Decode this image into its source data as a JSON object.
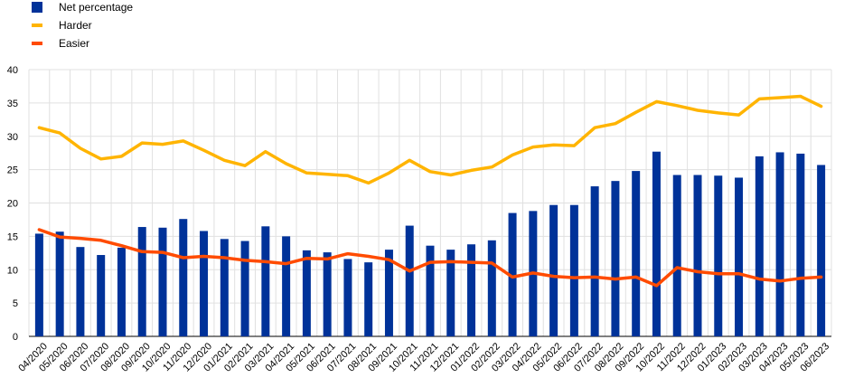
{
  "chart_data": {
    "type": "bar",
    "categories": [
      "04/2020",
      "05/2020",
      "06/2020",
      "07/2020",
      "08/2020",
      "09/2020",
      "10/2020",
      "11/2020",
      "12/2020",
      "01/2021",
      "02/2021",
      "03/2021",
      "04/2021",
      "05/2021",
      "06/2021",
      "07/2021",
      "08/2021",
      "09/2021",
      "10/2021",
      "11/2021",
      "12/2021",
      "01/2022",
      "02/2022",
      "03/2022",
      "04/2022",
      "05/2022",
      "06/2022",
      "07/2022",
      "08/2022",
      "09/2022",
      "10/2022",
      "11/2022",
      "12/2022",
      "01/2023",
      "02/2023",
      "03/2023",
      "04/2023",
      "05/2023",
      "06/2023"
    ],
    "series": [
      {
        "name": "Net percentage",
        "type": "bar",
        "color": "#003299",
        "values": [
          15.4,
          15.7,
          13.4,
          12.2,
          13.3,
          16.4,
          16.3,
          17.6,
          15.8,
          14.6,
          14.3,
          16.5,
          15.0,
          12.9,
          12.6,
          11.6,
          11.1,
          13.0,
          16.6,
          13.6,
          13.0,
          13.8,
          14.4,
          18.5,
          18.8,
          19.7,
          19.7,
          22.5,
          23.3,
          24.8,
          27.7,
          24.2,
          24.2,
          24.1,
          23.8,
          27.0,
          27.6,
          27.4,
          25.7
        ]
      },
      {
        "name": "Harder",
        "type": "line",
        "color": "#FFB400",
        "values": [
          31.3,
          30.5,
          28.2,
          26.6,
          27.0,
          29.0,
          28.8,
          29.3,
          27.9,
          26.4,
          25.6,
          27.7,
          25.9,
          24.5,
          24.3,
          24.1,
          23.0,
          24.5,
          26.4,
          24.7,
          24.2,
          24.9,
          25.4,
          27.2,
          28.4,
          28.7,
          28.6,
          31.3,
          31.9,
          33.6,
          35.2,
          34.6,
          33.9,
          33.5,
          33.2,
          35.6,
          35.8,
          36.0,
          34.5
        ]
      },
      {
        "name": "Easier",
        "type": "line",
        "color": "#FF4B00",
        "values": [
          16.0,
          14.9,
          14.7,
          14.4,
          13.6,
          12.7,
          12.6,
          11.8,
          12.0,
          11.8,
          11.4,
          11.2,
          10.9,
          11.7,
          11.6,
          12.4,
          12.0,
          11.5,
          9.8,
          11.1,
          11.2,
          11.1,
          11.0,
          8.9,
          9.5,
          9.0,
          8.8,
          8.9,
          8.6,
          8.9,
          7.6,
          10.3,
          9.7,
          9.4,
          9.4,
          8.6,
          8.3,
          8.7,
          8.9
        ]
      }
    ],
    "ylim": [
      0,
      40
    ],
    "yticks": [
      0,
      5,
      10,
      15,
      20,
      25,
      30,
      35,
      40
    ],
    "grid": true,
    "legend_position": "top-left",
    "title": "",
    "xlabel": "",
    "ylabel": ""
  }
}
